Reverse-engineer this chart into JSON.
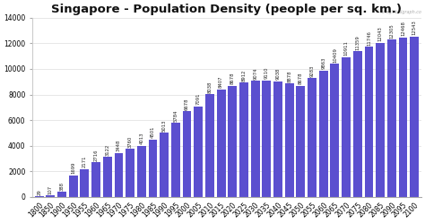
{
  "title": "Singapore - Population Density (people per sq. km.)",
  "years": [
    "1800",
    "1850",
    "1900",
    "1950",
    "1955",
    "1960",
    "1965",
    "1970",
    "1975",
    "1980",
    "1985",
    "1990",
    "1995",
    "2000",
    "2005",
    "2010",
    "2015",
    "2020",
    "2025",
    "2030",
    "2035",
    "2040",
    "2045",
    "2050",
    "2055",
    "2060",
    "2065",
    "2070",
    "2075",
    "2080",
    "2085",
    "2090",
    "2095",
    "2100"
  ],
  "values": [
    29,
    107,
    388,
    1699,
    2171,
    2716,
    3122,
    3448,
    3760,
    4013,
    4501,
    5013,
    5784,
    6678,
    7091,
    8038,
    8407,
    8678,
    8912,
    9074,
    9110,
    9038,
    8878,
    8678,
    9283,
    9863,
    10409,
    10911,
    11359,
    11746,
    12043,
    12305,
    12468,
    12543
  ],
  "bar_color": "#5b4fcf",
  "background_color": "#ffffff",
  "ylim": [
    0,
    14000
  ],
  "yticks": [
    0,
    2000,
    4000,
    6000,
    8000,
    10000,
    12000,
    14000
  ],
  "label_fontsize": 3.8,
  "title_fontsize": 9.5,
  "tick_fontsize": 5.5,
  "watermark": "© theglobalgraph.co"
}
